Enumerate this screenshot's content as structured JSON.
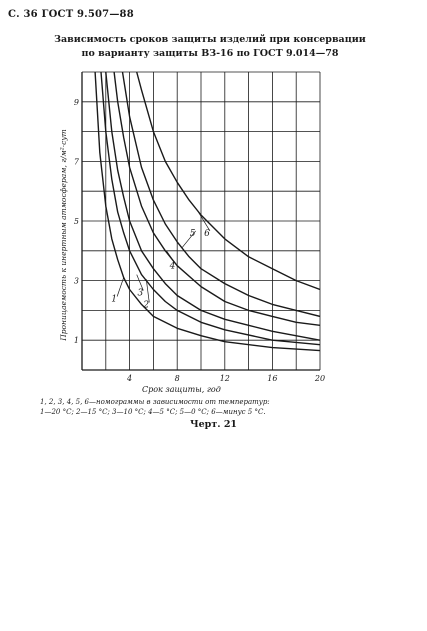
{
  "page": {
    "header": "С. 36 ГОСТ 9.507—88",
    "caption_line1": "1, 2, 3, 4, 5, 6—номограммы в зависимости от температур:",
    "caption_line2": "1—20 °С; 2—15 °С; 3—10 °С; 4—5 °С; 5—0 °С; 6—минус 5 °С.",
    "chart_number": "Черт. 21"
  },
  "colors": {
    "ink": "#1a1a1a",
    "paper": "#ffffff"
  },
  "chart_data": {
    "type": "line",
    "title_lines": [
      "Зависимость сроков защиты изделий при консервации",
      "по варианту защиты ВЗ-16 по ГОСТ 9.014—78"
    ],
    "xlabel": "Срок защиты, год",
    "ylabel": "Проницаемость к инертным атмосферам, г/м²·сут",
    "xlim": [
      0,
      20
    ],
    "ylim": [
      0,
      10
    ],
    "xticks": [
      4,
      8,
      12,
      16,
      20
    ],
    "yticks": [
      1,
      3,
      5,
      7,
      9
    ],
    "grid": true,
    "legend": "curve labels on lines",
    "series": [
      {
        "name": "1",
        "x": [
          1.1,
          1.5,
          2.0,
          2.5,
          3.0,
          3.5,
          4.0,
          5.0,
          6.0,
          8.0,
          10.0,
          12.0,
          16.0,
          20.0
        ],
        "values": [
          10.0,
          7.3,
          5.5,
          4.4,
          3.7,
          3.1,
          2.7,
          2.2,
          1.8,
          1.4,
          1.15,
          0.95,
          0.75,
          0.65
        ]
      },
      {
        "name": "2",
        "x": [
          1.6,
          2.0,
          2.5,
          3.0,
          3.5,
          4.0,
          5.0,
          6.0,
          7.0,
          8.0,
          10.0,
          12.0,
          16.0,
          20.0
        ],
        "values": [
          10.0,
          8.0,
          6.4,
          5.3,
          4.6,
          4.0,
          3.2,
          2.7,
          2.3,
          2.0,
          1.6,
          1.35,
          1.0,
          0.85
        ]
      },
      {
        "name": "3",
        "x": [
          2.0,
          2.5,
          3.0,
          3.5,
          4.0,
          5.0,
          6.0,
          7.0,
          8.0,
          10.0,
          12.0,
          14.0,
          16.0,
          20.0
        ],
        "values": [
          10.0,
          8.0,
          6.7,
          5.8,
          5.0,
          4.0,
          3.4,
          2.9,
          2.5,
          2.0,
          1.7,
          1.5,
          1.3,
          1.0
        ]
      },
      {
        "name": "4",
        "x": [
          2.7,
          3.0,
          3.5,
          4.0,
          5.0,
          6.0,
          7.0,
          8.0,
          10.0,
          12.0,
          14.0,
          16.0,
          18.0,
          20.0
        ],
        "values": [
          10.0,
          9.0,
          7.8,
          6.8,
          5.5,
          4.6,
          4.0,
          3.5,
          2.8,
          2.3,
          2.0,
          1.8,
          1.6,
          1.5
        ]
      },
      {
        "name": "5",
        "x": [
          3.4,
          4.0,
          5.0,
          6.0,
          7.0,
          8.0,
          9.0,
          10.0,
          12.0,
          14.0,
          16.0,
          18.0,
          20.0
        ],
        "values": [
          10.0,
          8.5,
          6.8,
          5.7,
          4.9,
          4.3,
          3.8,
          3.4,
          2.9,
          2.5,
          2.2,
          2.0,
          1.8
        ]
      },
      {
        "name": "6",
        "x": [
          4.6,
          5.0,
          6.0,
          7.0,
          8.0,
          9.0,
          10.0,
          12.0,
          14.0,
          16.0,
          18.0,
          20.0
        ],
        "values": [
          10.0,
          9.4,
          8.0,
          7.0,
          6.3,
          5.7,
          5.2,
          4.4,
          3.8,
          3.4,
          3.0,
          2.7
        ]
      }
    ],
    "curve_labels": [
      "1",
      "2",
      "3",
      "4",
      "5",
      "6"
    ]
  }
}
